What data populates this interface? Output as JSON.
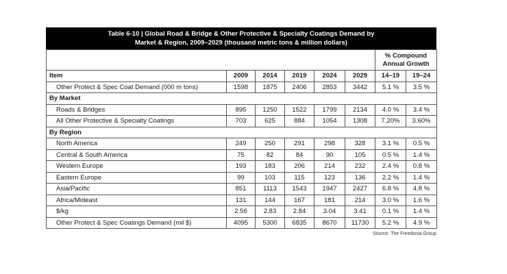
{
  "title_line1": "Table 6-10 | Global Road & Bridge & Other Protective & Specialty Coatings Demand by",
  "title_line2": "Market & Region, 2009–2029 (thousand metric tons & million dollars)",
  "cagr_header_line1": "% Compound",
  "cagr_header_line2": "Annual Growth",
  "columns": {
    "item": "Item",
    "y2009": "2009",
    "y2014": "2014",
    "y2019": "2019",
    "y2024": "2024",
    "y2029": "2029",
    "g1": "14–19",
    "g2": "19–24"
  },
  "rows": [
    {
      "label": "Other Protect & Spec Coat Demand (000 m tons)",
      "v": [
        "1598",
        "1875",
        "2406",
        "2853",
        "3442",
        "5.1 %",
        "3.5 %"
      ]
    },
    {
      "section": "By Market"
    },
    {
      "label": "Roads & Bridges",
      "v": [
        "895",
        "1250",
        "1522",
        "1799",
        "2134",
        "4.0 %",
        "3.4 %"
      ]
    },
    {
      "label": "All Other Protective & Specialty Coatings",
      "v": [
        "703",
        "625",
        "884",
        "1054",
        "1308",
        "7.20%",
        "3.60%"
      ]
    },
    {
      "section": "By Region"
    },
    {
      "label": "North America",
      "v": [
        "249",
        "250",
        "291",
        "298",
        "328",
        "3.1 %",
        "0.5 %"
      ]
    },
    {
      "label": "Central & South America",
      "v": [
        "75",
        "82",
        "84",
        "90",
        "105",
        "0.5 %",
        "1.4 %"
      ]
    },
    {
      "label": "Western Europe",
      "v": [
        "193",
        "183",
        "206",
        "214",
        "232",
        "2.4 %",
        "0.8 %"
      ]
    },
    {
      "label": "Eastern Europe",
      "v": [
        "99",
        "103",
        "115",
        "123",
        "136",
        "2.2 %",
        "1.4 %"
      ]
    },
    {
      "label": "Asia/Pacific",
      "v": [
        "851",
        "1113",
        "1543",
        "1947",
        "2427",
        "6.8 %",
        "4.8 %"
      ]
    },
    {
      "label": "Africa/Mideast",
      "v": [
        "131",
        "144",
        "167",
        "181",
        "214",
        "3.0 %",
        "1.6 %"
      ]
    },
    {
      "label": "$/kg",
      "v": [
        "2.56",
        "2.83",
        "2.84",
        "3.04",
        "3.41",
        "0.1 %",
        "1.4 %"
      ]
    },
    {
      "label": "Other Protect & Spec Coatings Demand (mil $)",
      "v": [
        "4095",
        "5300",
        "6835",
        "8670",
        "11730",
        "5.2 %",
        "4.9 %"
      ]
    }
  ],
  "source": "Source: The Freedonia Group"
}
